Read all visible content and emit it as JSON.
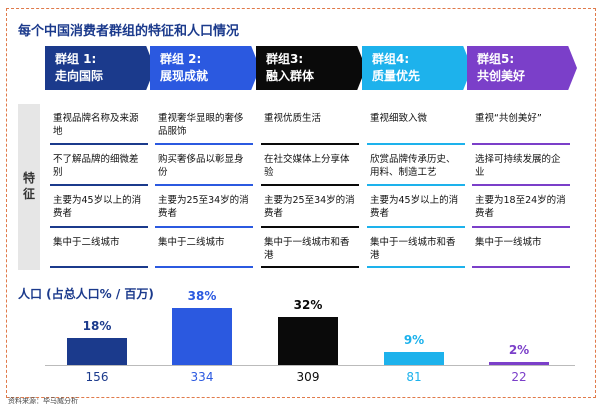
{
  "title": "每个中国消费者群组的特征和人口情况",
  "side_label": "特征",
  "groups": [
    {
      "name": "群组 1:",
      "theme": "走向国际",
      "traits": [
        "重视品牌名称及来源地",
        "不了解品牌的细微差别",
        "主要为45岁以上的消费者",
        "集中于二线城市"
      ]
    },
    {
      "name": "群组 2:",
      "theme": "展现成就",
      "traits": [
        "重视奢华显眼的奢侈品服饰",
        "购买奢侈品以彰显身份",
        "主要为25至34岁的消费者",
        "集中于二线城市"
      ]
    },
    {
      "name": "群组3:",
      "theme": "融入群体",
      "traits": [
        "重视优质生活",
        "在社交媒体上分享体验",
        "主要为25至34岁的消费者",
        "集中于一线城市和香港"
      ]
    },
    {
      "name": "群组4:",
      "theme": "质量优先",
      "traits": [
        "重视细致入微",
        "欣赏品牌传承历史、用料、制造工艺",
        "主要为45岁以上的消费者",
        "集中于一线城市和香港"
      ]
    },
    {
      "name": "群组5:",
      "theme": "共创美好",
      "traits": [
        "重视“共创美好”",
        "选择可持续发展的企业",
        "主要为18至24岁的消费者",
        "集中于一线城市"
      ]
    }
  ],
  "chart_data": {
    "type": "bar",
    "title": "人口 (占总人口% / 百万)",
    "values": [
      18,
      38,
      32,
      9,
      2
    ],
    "value_labels": [
      "18%",
      "38%",
      "32%",
      "9%",
      "2%"
    ],
    "populations": [
      156,
      334,
      309,
      81,
      22
    ],
    "colors": [
      "#1b3a8c",
      "#2b59e0",
      "#0a0a0a",
      "#1db2ec",
      "#7b3fc9"
    ]
  },
  "source": "资料来源：毕马威分析"
}
